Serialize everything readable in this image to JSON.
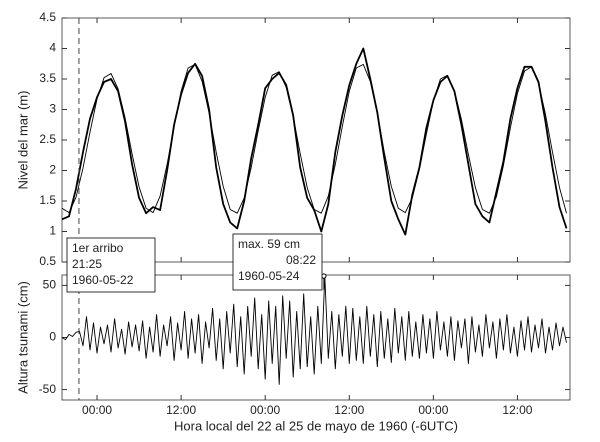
{
  "chart_data": [
    {
      "type": "line",
      "y_label": "Nivel del mar (m)",
      "xlim": [
        19,
        91.5
      ],
      "ylim": [
        0.5,
        4.5
      ],
      "xticks": [
        24,
        36,
        48,
        60,
        72,
        84
      ],
      "yticks": [
        0.5,
        1,
        1.5,
        2,
        2.5,
        3,
        3.5,
        4,
        4.5
      ],
      "grid": false,
      "x": [
        19,
        20,
        21,
        22,
        23,
        24,
        25,
        26,
        27,
        28,
        29,
        30,
        31,
        32,
        33,
        34,
        35,
        36,
        37,
        38,
        39,
        40,
        41,
        42,
        43,
        44,
        45,
        46,
        47,
        48,
        49,
        50,
        51,
        52,
        53,
        54,
        55,
        56,
        57,
        58,
        59,
        60,
        61,
        62,
        63,
        64,
        65,
        66,
        67,
        68,
        69,
        70,
        71,
        72,
        73,
        74,
        75,
        76,
        77,
        78,
        79,
        80,
        81,
        82,
        83,
        84,
        85,
        86,
        87,
        88,
        89,
        90,
        91
      ],
      "series": [
        {
          "color": "#000000",
          "values": [
            1.2,
            1.25,
            1.7,
            2.3,
            2.85,
            3.2,
            3.45,
            3.5,
            3.3,
            2.8,
            2.1,
            1.55,
            1.3,
            1.4,
            1.35,
            2.0,
            2.75,
            3.25,
            3.6,
            3.75,
            3.55,
            3.0,
            2.05,
            1.45,
            1.15,
            1.05,
            1.5,
            2.2,
            2.75,
            3.35,
            3.5,
            3.6,
            3.4,
            2.9,
            2.05,
            1.55,
            1.35,
            1.0,
            1.45,
            2.3,
            2.9,
            3.4,
            3.75,
            4.0,
            3.5,
            2.95,
            2.2,
            1.5,
            1.2,
            0.95,
            1.6,
            2.05,
            2.7,
            3.15,
            3.45,
            3.55,
            3.3,
            2.75,
            2.1,
            1.45,
            1.25,
            1.15,
            1.65,
            2.15,
            2.85,
            3.35,
            3.7,
            3.7,
            3.45,
            2.8,
            2.05,
            1.4,
            1.05
          ]
        },
        {
          "color": "#000000",
          "values": [
            1.38,
            1.31,
            1.56,
            2.04,
            2.63,
            3.17,
            3.52,
            3.59,
            3.34,
            2.86,
            2.27,
            1.73,
            1.38,
            1.31,
            1.58,
            2.1,
            2.72,
            3.3,
            3.68,
            3.74,
            3.46,
            2.94,
            2.3,
            1.74,
            1.36,
            1.3,
            1.55,
            2.05,
            2.65,
            3.2,
            3.56,
            3.62,
            3.36,
            2.88,
            2.28,
            1.72,
            1.36,
            1.3,
            1.58,
            2.1,
            2.72,
            3.3,
            3.68,
            3.74,
            3.46,
            2.94,
            2.3,
            1.74,
            1.38,
            1.31,
            1.55,
            2.02,
            2.6,
            3.14,
            3.5,
            3.56,
            3.31,
            2.84,
            2.26,
            1.72,
            1.36,
            1.3,
            1.57,
            2.08,
            2.7,
            3.26,
            3.63,
            3.7,
            3.43,
            2.92,
            2.3,
            1.72,
            1.3
          ]
        }
      ]
    },
    {
      "type": "line",
      "y_label": "Altura tsunami (cm)",
      "x_label": "Hora local del 22 al 25 de mayo de 1960 (-6UTC)",
      "xlim": [
        19,
        91.5
      ],
      "ylim": [
        -60,
        60
      ],
      "xticks": [
        {
          "value": 24,
          "label": "00:00"
        },
        {
          "value": 36,
          "label": "12:00"
        },
        {
          "value": 48,
          "label": "00:00"
        },
        {
          "value": 60,
          "label": "12:00"
        },
        {
          "value": 72,
          "label": "00:00"
        },
        {
          "value": 84,
          "label": "12:00"
        }
      ],
      "yticks": [
        -50,
        0,
        50
      ],
      "grid": false,
      "x": [
        19,
        19.5,
        20,
        20.5,
        21,
        21.5,
        22,
        22.5,
        23,
        23.5,
        24,
        24.5,
        25,
        25.5,
        26,
        26.5,
        27,
        27.5,
        28,
        28.5,
        29,
        29.5,
        30,
        30.5,
        31,
        31.5,
        32,
        32.5,
        33,
        33.5,
        34,
        34.5,
        35,
        35.5,
        36,
        36.5,
        37,
        37.5,
        38,
        38.5,
        39,
        39.5,
        40,
        40.5,
        41,
        41.5,
        42,
        42.5,
        43,
        43.5,
        44,
        44.5,
        45,
        45.5,
        46,
        46.5,
        47,
        47.5,
        48,
        48.5,
        49,
        49.5,
        50,
        50.5,
        51,
        51.5,
        52,
        52.5,
        53,
        53.5,
        54,
        54.5,
        55,
        55.5,
        56,
        56.5,
        57,
        57.5,
        58,
        58.5,
        59,
        59.5,
        60,
        60.5,
        61,
        61.5,
        62,
        62.5,
        63,
        63.5,
        64,
        64.5,
        65,
        65.5,
        66,
        66.5,
        67,
        67.5,
        68,
        68.5,
        69,
        69.5,
        70,
        70.5,
        71,
        71.5,
        72,
        72.5,
        73,
        73.5,
        74,
        74.5,
        75,
        75.5,
        76,
        76.5,
        77,
        77.5,
        78,
        78.5,
        79,
        79.5,
        80,
        80.5,
        81,
        81.5,
        82,
        82.5,
        83,
        83.5,
        84,
        84.5,
        85,
        85.5,
        86,
        86.5,
        87,
        87.5,
        88,
        88.5,
        89,
        89.5,
        90,
        90.5,
        91
      ],
      "series": [
        {
          "color": "#000000",
          "values": [
            0,
            -2,
            3,
            1,
            5,
            6,
            -8,
            20,
            -12,
            14,
            -15,
            10,
            -6,
            12,
            -14,
            18,
            -10,
            8,
            -16,
            15,
            -9,
            12,
            -13,
            16,
            -20,
            10,
            -14,
            22,
            -18,
            12,
            -8,
            20,
            -22,
            14,
            -12,
            25,
            -20,
            18,
            -15,
            22,
            -25,
            15,
            -10,
            28,
            -22,
            18,
            -30,
            25,
            -15,
            32,
            -28,
            20,
            -35,
            30,
            -18,
            38,
            -30,
            22,
            -40,
            35,
            -25,
            30,
            -45,
            40,
            -20,
            35,
            -38,
            25,
            -30,
            42,
            -28,
            20,
            -35,
            30,
            -25,
            59,
            -20,
            25,
            -30,
            22,
            -18,
            30,
            -25,
            28,
            -22,
            20,
            -25,
            30,
            -18,
            22,
            -28,
            25,
            -20,
            18,
            -24,
            28,
            -15,
            20,
            -22,
            25,
            -18,
            15,
            -20,
            22,
            -15,
            18,
            -20,
            25,
            -12,
            15,
            -18,
            20,
            -22,
            16,
            -10,
            18,
            -25,
            20,
            -14,
            12,
            -18,
            22,
            -10,
            15,
            -20,
            18,
            -12,
            22,
            -15,
            10,
            -18,
            16,
            -12,
            20,
            -14,
            12,
            -10,
            18,
            -15,
            10,
            -12,
            14,
            -8,
            10,
            -5
          ]
        }
      ],
      "first_arrival": {
        "x": 21.42,
        "lines": [
          "1er arribo",
          "21:25",
          "1960-05-22"
        ]
      },
      "max": {
        "x": 56.37,
        "y": 59,
        "lines": [
          "max. 59 cm",
          "08:22",
          "1960-05-24"
        ]
      }
    }
  ]
}
